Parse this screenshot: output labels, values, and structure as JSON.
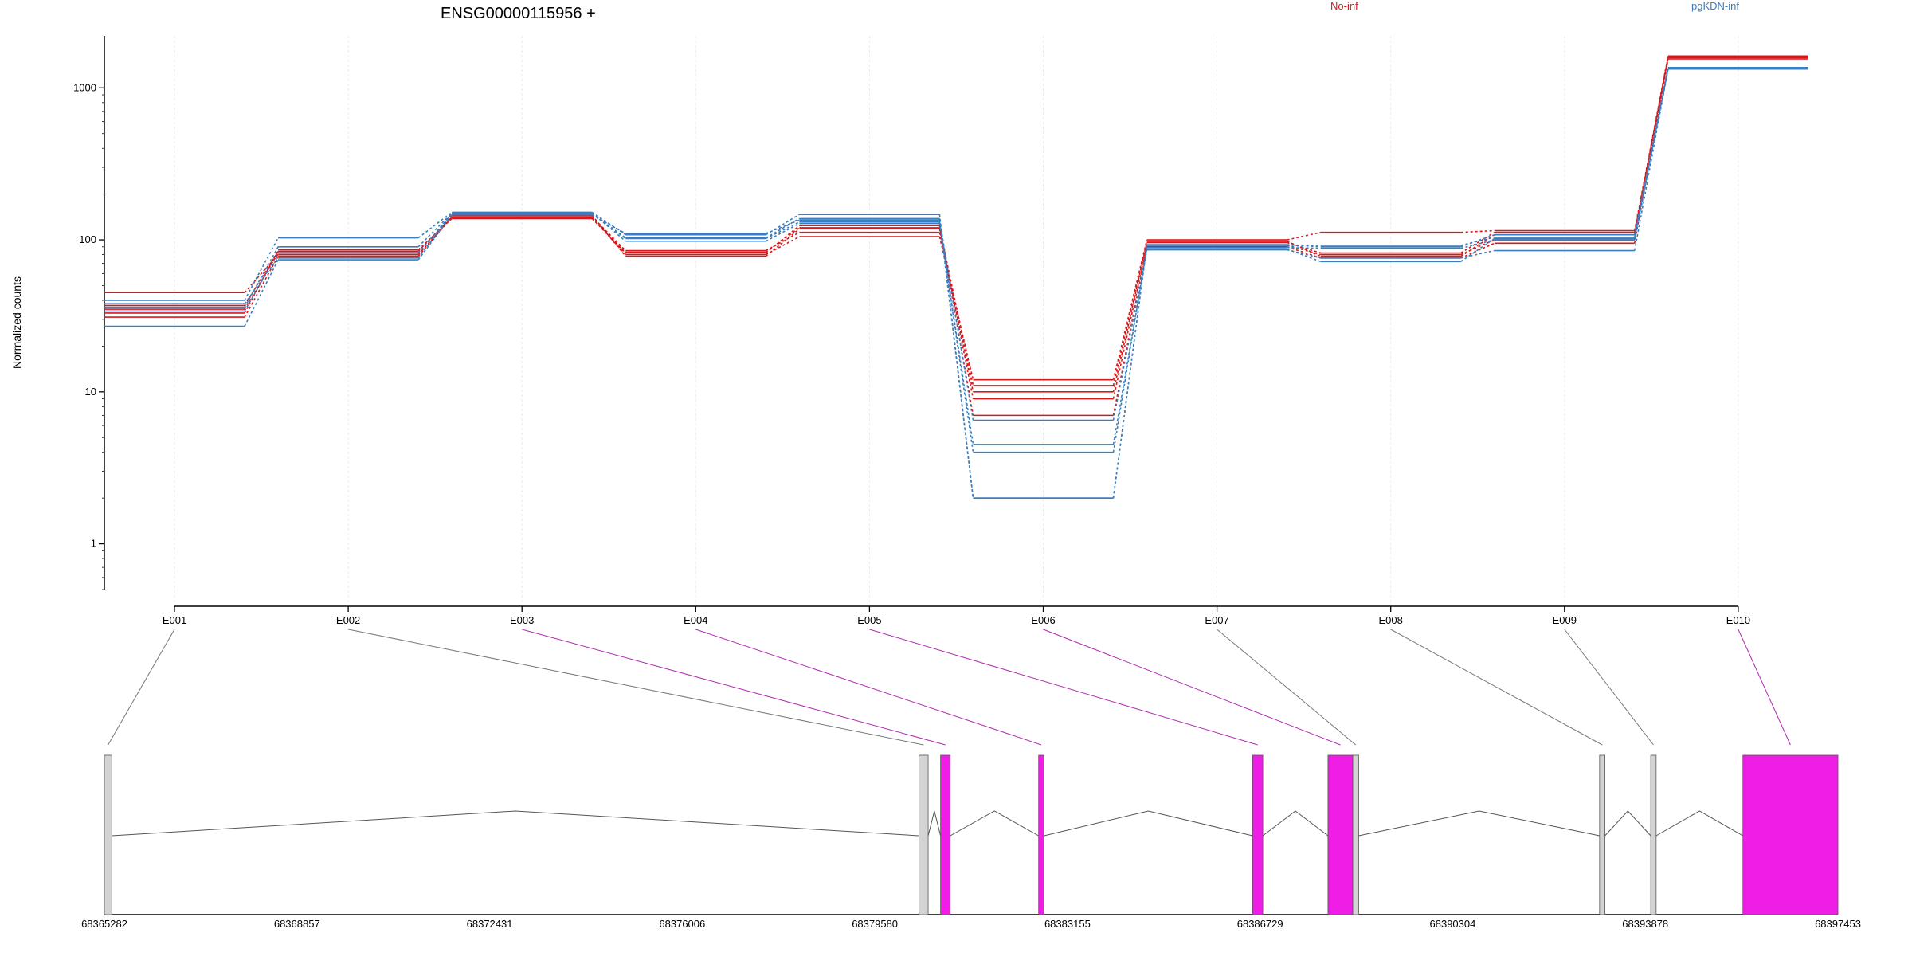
{
  "chart_data": {
    "type": "line",
    "title": "ENSG00000115956 +",
    "ylabel": "Normalized counts",
    "y_scale": "log",
    "ylim": [
      0.5,
      2200
    ],
    "y_ticks": [
      1,
      10,
      100,
      1000
    ],
    "y_tick_labels": [
      "1",
      "10",
      "100",
      "1000"
    ],
    "categories": [
      "E001",
      "E002",
      "E003",
      "E004",
      "E005",
      "E006",
      "E007",
      "E008",
      "E009",
      "E010"
    ],
    "legend": [
      {
        "label": "No-inf",
        "color": "#d7191c",
        "position": "top"
      },
      {
        "label": "pgKDN-inf",
        "color": "#3a7ebf",
        "position": "top-right"
      }
    ],
    "highlight_color": "#f01de6",
    "series": [
      {
        "group": "No-inf",
        "color": "#d7191c",
        "values": [
          45,
          80,
          140,
          80,
          105,
          12,
          100,
          112,
          115,
          1620
        ]
      },
      {
        "group": "No-inf",
        "color": "#d7191c",
        "values": [
          37,
          84,
          142,
          85,
          112,
          10,
          96,
          82,
          112,
          1600
        ]
      },
      {
        "group": "No-inf",
        "color": "#d7191c",
        "values": [
          35,
          82,
          145,
          78,
          118,
          9,
          92,
          80,
          100,
          1580
        ]
      },
      {
        "group": "No-inf",
        "color": "#d7191c",
        "values": [
          33,
          86,
          138,
          82,
          124,
          7,
          90,
          76,
          95,
          1550
        ]
      },
      {
        "group": "No-inf",
        "color": "#d7191c",
        "values": [
          31,
          78,
          141,
          83,
          120,
          11,
          98,
          78,
          108,
          1610
        ]
      },
      {
        "group": "pgKDN-inf",
        "color": "#3a7ebf",
        "values": [
          40,
          103,
          152,
          108,
          147,
          2,
          93,
          90,
          108,
          1360
        ]
      },
      {
        "group": "pgKDN-inf",
        "color": "#3a7ebf",
        "values": [
          36,
          90,
          150,
          103,
          138,
          2,
          92,
          92,
          104,
          1340
        ]
      },
      {
        "group": "pgKDN-inf",
        "color": "#3a7ebf",
        "values": [
          34,
          82,
          148,
          102,
          131,
          4,
          89,
          88,
          100,
          1350
        ]
      },
      {
        "group": "pgKDN-inf",
        "color": "#3a7ebf",
        "values": [
          27,
          74,
          146,
          110,
          135,
          6.5,
          86,
          76,
          85,
          1330
        ]
      },
      {
        "group": "pgKDN-inf",
        "color": "#3a7ebf",
        "values": [
          38,
          76,
          150,
          98,
          128,
          4.5,
          87,
          72,
          102,
          1340
        ]
      }
    ],
    "gene_model": {
      "coordinate_ticks": [
        "68365282",
        "68368857",
        "68372431",
        "68376006",
        "68379580",
        "68383155",
        "68386729",
        "68390304",
        "68393878",
        "68397453"
      ],
      "coordinate_range": [
        68365282,
        68397453
      ],
      "exons": [
        {
          "id": "E001",
          "start": 68365282,
          "end": 68365420,
          "highlighted": false
        },
        {
          "id": "E002",
          "start": 68380400,
          "end": 68380570,
          "highlighted": false
        },
        {
          "id": "E003",
          "start": 68380800,
          "end": 68380980,
          "highlighted": true
        },
        {
          "id": "E004",
          "start": 68382620,
          "end": 68382720,
          "highlighted": true
        },
        {
          "id": "E005",
          "start": 68386590,
          "end": 68386780,
          "highlighted": true
        },
        {
          "id": "E006",
          "start": 68387990,
          "end": 68388450,
          "highlighted": true
        },
        {
          "id": "E007",
          "start": 68388450,
          "end": 68388560,
          "highlighted": false
        },
        {
          "id": "E008",
          "start": 68393030,
          "end": 68393130,
          "highlighted": false
        },
        {
          "id": "E009",
          "start": 68393980,
          "end": 68394080,
          "highlighted": false
        },
        {
          "id": "E010",
          "start": 68395690,
          "end": 68397453,
          "highlighted": true
        }
      ]
    }
  }
}
